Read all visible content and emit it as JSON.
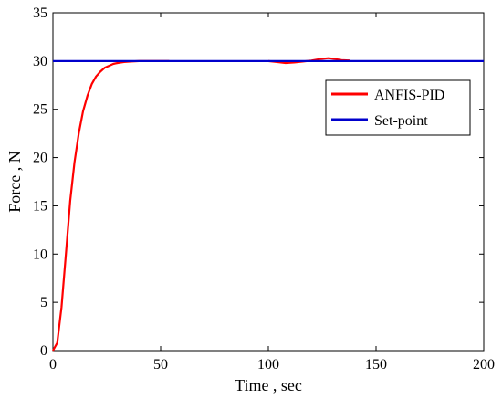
{
  "chart_data": {
    "type": "line",
    "title": "",
    "xlabel": "Time ,  sec",
    "ylabel": "Force , N",
    "xlim": [
      0,
      200
    ],
    "ylim": [
      0,
      35
    ],
    "xticks": [
      "0",
      "50",
      "100",
      "150",
      "200"
    ],
    "yticks": [
      "0",
      "5",
      "10",
      "15",
      "20",
      "25",
      "30",
      "35"
    ],
    "grid": false,
    "legend_position": "top-right",
    "series": [
      {
        "name": "ANFIS-PID",
        "color": "#ff0000",
        "x": [
          0,
          2,
          4,
          6,
          8,
          10,
          12,
          14,
          16,
          18,
          20,
          22,
          24,
          26,
          28,
          30,
          33,
          36,
          40,
          45,
          50,
          54
        ],
        "y": [
          0,
          0.8,
          4.5,
          10.0,
          15.5,
          19.5,
          22.5,
          24.8,
          26.4,
          27.6,
          28.4,
          28.9,
          29.3,
          29.5,
          29.7,
          29.8,
          29.9,
          29.95,
          30.0,
          30.0,
          30.0,
          30.0
        ]
      },
      {
        "name": "ANFIS-PID",
        "color": "#ff0000",
        "x": [
          100,
          104,
          108,
          112,
          116,
          120,
          124,
          128,
          131,
          134,
          138
        ],
        "y": [
          30.0,
          29.9,
          29.8,
          29.85,
          29.95,
          30.05,
          30.2,
          30.3,
          30.2,
          30.1,
          30.05
        ]
      },
      {
        "name": "Set-point",
        "color": "#0000cc",
        "x": [
          0,
          200
        ],
        "y": [
          30,
          30
        ]
      }
    ],
    "legend": [
      {
        "label": "ANFIS-PID",
        "color": "#ff0000"
      },
      {
        "label": "Set-point",
        "color": "#0000cc"
      }
    ]
  }
}
